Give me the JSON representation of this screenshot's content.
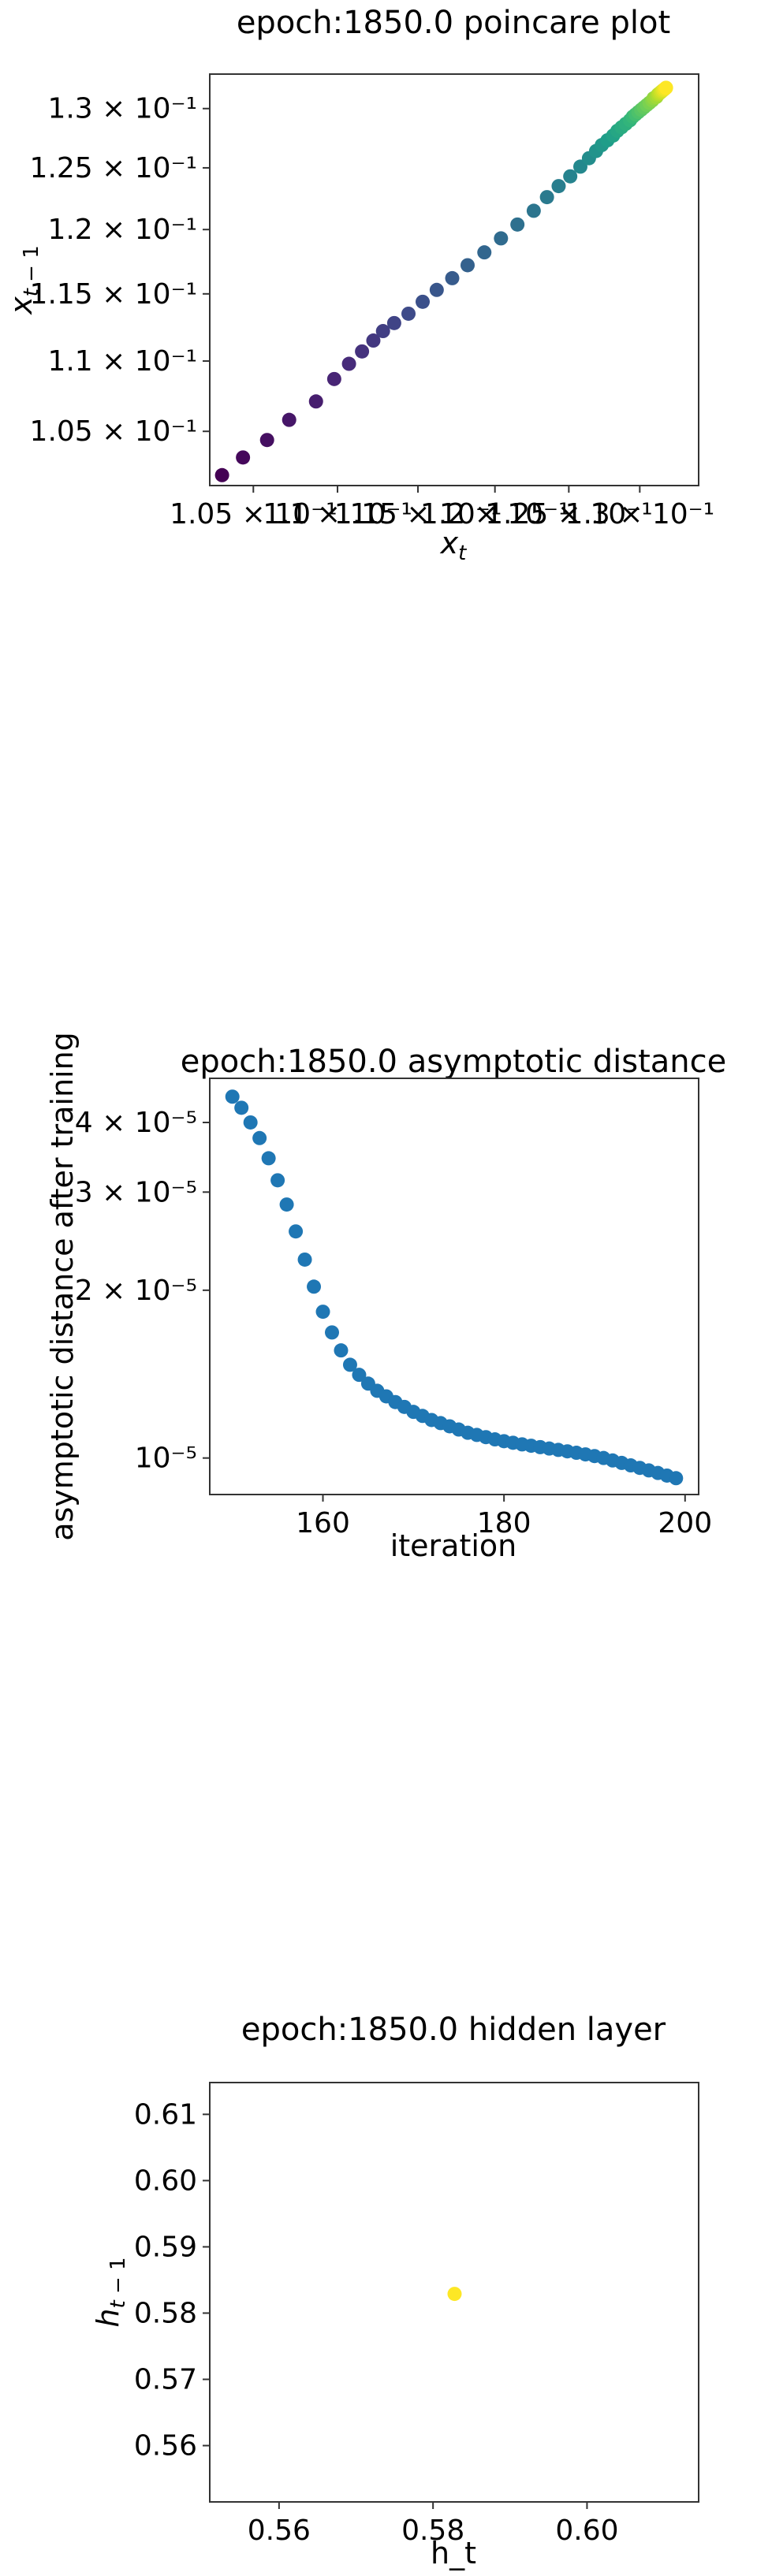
{
  "chart_data": [
    {
      "type": "scatter",
      "title": "epoch:1850.0 poincare plot",
      "xlabel": "x_t",
      "ylabel": "x_{t-1}",
      "xscale": "log",
      "yscale": "log",
      "xlim": [
        0.1025,
        0.1343
      ],
      "ylim": [
        0.1013,
        0.133
      ],
      "x_ticks": [
        {
          "value": 0.105,
          "label": "1.05 × 10⁻¹"
        },
        {
          "value": 0.11,
          "label": "1.1 × 10⁻¹"
        },
        {
          "value": 0.115,
          "label": "1.15 × 10⁻¹"
        },
        {
          "value": 0.12,
          "label": "1.2 × 10⁻¹"
        },
        {
          "value": 0.125,
          "label": "1.25 × 10⁻¹"
        },
        {
          "value": 0.13,
          "label": "1.3 × 10⁻¹"
        }
      ],
      "y_ticks": [
        {
          "value": 0.105,
          "label": "1.05 × 10⁻¹"
        },
        {
          "value": 0.11,
          "label": "1.1 × 10⁻¹"
        },
        {
          "value": 0.115,
          "label": "1.15 × 10⁻¹"
        },
        {
          "value": 0.12,
          "label": "1.2 × 10⁻¹"
        },
        {
          "value": 0.125,
          "label": "1.25 × 10⁻¹"
        },
        {
          "value": 0.13,
          "label": "1.3 × 10⁻¹"
        }
      ],
      "colormap": "viridis",
      "points": [
        [
          0.1032,
          0.102
        ],
        [
          0.1044,
          0.1032
        ],
        [
          0.1058,
          0.1044
        ],
        [
          0.1071,
          0.1058
        ],
        [
          0.1087,
          0.1071
        ],
        [
          0.1098,
          0.1087
        ],
        [
          0.1107,
          0.1098
        ],
        [
          0.1115,
          0.1107
        ],
        [
          0.1122,
          0.1115
        ],
        [
          0.1128,
          0.1122
        ],
        [
          0.1135,
          0.1128
        ],
        [
          0.1144,
          0.1135
        ],
        [
          0.1153,
          0.1144
        ],
        [
          0.1162,
          0.1153
        ],
        [
          0.1172,
          0.1162
        ],
        [
          0.1182,
          0.1172
        ],
        [
          0.1193,
          0.1182
        ],
        [
          0.1204,
          0.1193
        ],
        [
          0.1215,
          0.1204
        ],
        [
          0.1226,
          0.1215
        ],
        [
          0.1235,
          0.1226
        ],
        [
          0.1243,
          0.1235
        ],
        [
          0.1251,
          0.1243
        ],
        [
          0.1258,
          0.1251
        ],
        [
          0.1264,
          0.1258
        ],
        [
          0.1269,
          0.1264
        ],
        [
          0.1273,
          0.1269
        ],
        [
          0.1277,
          0.1273
        ],
        [
          0.1281,
          0.1277
        ],
        [
          0.1284,
          0.1281
        ],
        [
          0.1287,
          0.1284
        ],
        [
          0.129,
          0.1287
        ],
        [
          0.1293,
          0.129
        ],
        [
          0.1295,
          0.1293
        ],
        [
          0.1297,
          0.1295
        ],
        [
          0.1299,
          0.1297
        ],
        [
          0.1301,
          0.1299
        ],
        [
          0.1303,
          0.1301
        ],
        [
          0.1305,
          0.1303
        ],
        [
          0.1307,
          0.1305
        ],
        [
          0.1309,
          0.1307
        ],
        [
          0.131,
          0.1309
        ],
        [
          0.1312,
          0.131
        ],
        [
          0.1313,
          0.1312
        ],
        [
          0.1314,
          0.1313
        ],
        [
          0.1315,
          0.1314
        ],
        [
          0.1316,
          0.1315
        ],
        [
          0.1317,
          0.1316
        ],
        [
          0.1318,
          0.1317
        ],
        [
          0.1319,
          0.1318
        ]
      ]
    },
    {
      "type": "scatter",
      "title": "epoch:1850.0 asymptotic distance",
      "xlabel": "iteration",
      "ylabel": "asymptotic distance after training",
      "xscale": "linear",
      "yscale": "log",
      "xlim": [
        147.5,
        201.5
      ],
      "ylim": [
        8.6e-06,
        4.8e-05
      ],
      "x_ticks": [
        {
          "value": 160,
          "label": "160"
        },
        {
          "value": 180,
          "label": "180"
        },
        {
          "value": 200,
          "label": "200"
        }
      ],
      "y_ticks": [
        {
          "value": 1e-05,
          "label": "10⁻⁵"
        },
        {
          "value": 2e-05,
          "label": "2 × 10⁻⁵"
        },
        {
          "value": 3e-05,
          "label": "3 × 10⁻⁵"
        },
        {
          "value": 4e-05,
          "label": "4 × 10⁻⁵"
        }
      ],
      "color": "#1f77b4",
      "x": [
        150,
        151,
        152,
        153,
        154,
        155,
        156,
        157,
        158,
        159,
        160,
        161,
        162,
        163,
        164,
        165,
        166,
        167,
        168,
        169,
        170,
        171,
        172,
        173,
        174,
        175,
        176,
        177,
        178,
        179,
        180,
        181,
        182,
        183,
        184,
        185,
        186,
        187,
        188,
        189,
        190,
        191,
        192,
        193,
        194,
        195,
        196,
        197,
        198,
        199
      ],
      "y": [
        4.45e-05,
        4.25e-05,
        4e-05,
        3.75e-05,
        3.45e-05,
        3.15e-05,
        2.85e-05,
        2.55e-05,
        2.27e-05,
        2.03e-05,
        1.83e-05,
        1.68e-05,
        1.56e-05,
        1.47e-05,
        1.41e-05,
        1.36e-05,
        1.32e-05,
        1.29e-05,
        1.26e-05,
        1.235e-05,
        1.21e-05,
        1.19e-05,
        1.17e-05,
        1.155e-05,
        1.14e-05,
        1.125e-05,
        1.11e-05,
        1.1e-05,
        1.09e-05,
        1.08e-05,
        1.072e-05,
        1.065e-05,
        1.058e-05,
        1.052e-05,
        1.046e-05,
        1.04e-05,
        1.034e-05,
        1.028e-05,
        1.022e-05,
        1.015e-05,
        1.008e-05,
        1e-05,
        9.9e-06,
        9.8e-06,
        9.7e-06,
        9.6e-06,
        9.5e-06,
        9.4e-06,
        9.3e-06,
        9.2e-06
      ]
    },
    {
      "type": "scatter",
      "title": "epoch:1850.0 hidden layer",
      "xlabel": "h_t",
      "ylabel": "h_{t-1}",
      "xscale": "linear",
      "yscale": "linear",
      "xlim": [
        0.551,
        0.6145
      ],
      "ylim": [
        0.5515,
        0.6148
      ],
      "x_ticks": [
        {
          "value": 0.56,
          "label": "0.56"
        },
        {
          "value": 0.58,
          "label": "0.58"
        },
        {
          "value": 0.6,
          "label": "0.60"
        }
      ],
      "y_ticks": [
        {
          "value": 0.56,
          "label": "0.56"
        },
        {
          "value": 0.57,
          "label": "0.57"
        },
        {
          "value": 0.58,
          "label": "0.58"
        },
        {
          "value": 0.59,
          "label": "0.59"
        },
        {
          "value": 0.6,
          "label": "0.60"
        },
        {
          "value": 0.61,
          "label": "0.61"
        }
      ],
      "color": "#fde725",
      "points": [
        [
          0.5828,
          0.5829
        ]
      ]
    }
  ]
}
